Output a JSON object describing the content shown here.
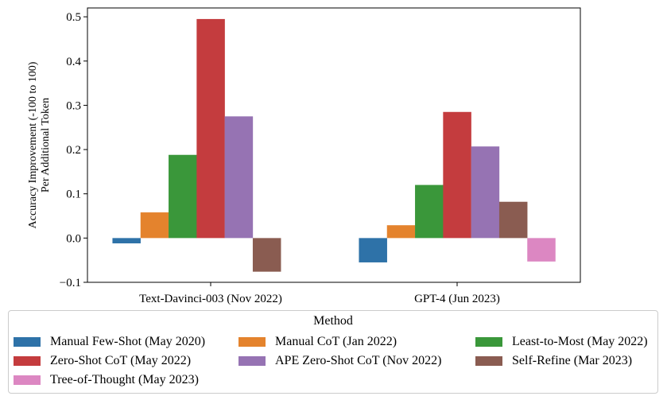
{
  "chart_data": {
    "type": "bar",
    "categories": [
      "Text-Davinci-003 (Nov 2022)",
      "GPT-4 (Jun 2023)"
    ],
    "ylabel_lines": [
      "Accuracy Improvement (-100 to 100)",
      "Per Additional Token"
    ],
    "xlabel": "",
    "ylim": [
      -0.1,
      0.52
    ],
    "yticks": [
      -0.1,
      0.0,
      0.1,
      0.2,
      0.3,
      0.4,
      0.5
    ],
    "ytick_labels": [
      "−0.1",
      "0.0",
      "0.1",
      "0.2",
      "0.3",
      "0.4",
      "0.5"
    ],
    "grid": false,
    "legend": {
      "title": "Method",
      "placement": "below plot",
      "columns": 3
    },
    "series": [
      {
        "name": "Manual Few-Shot (May 2020)",
        "color": "#2e72a8",
        "values": [
          -0.012,
          -0.055
        ]
      },
      {
        "name": "Manual CoT (Jan 2022)",
        "color": "#e4832d",
        "values": [
          0.058,
          0.029
        ]
      },
      {
        "name": "Least-to-Most (May 2022)",
        "color": "#3a973a",
        "values": [
          0.188,
          0.12
        ]
      },
      {
        "name": "Zero-Shot CoT (May 2022)",
        "color": "#c43c3e",
        "values": [
          0.495,
          0.285
        ]
      },
      {
        "name": "APE Zero-Shot CoT (Nov 2022)",
        "color": "#9673b3",
        "values": [
          0.275,
          0.207
        ]
      },
      {
        "name": "Self-Refine (Mar 2023)",
        "color": "#8a5c51",
        "values": [
          -0.076,
          0.082
        ]
      },
      {
        "name": "Tree-of-Thought (May 2023)",
        "color": "#dc87c2",
        "values": [
          null,
          -0.053
        ]
      }
    ],
    "legend_order": [
      0,
      1,
      2,
      3,
      4,
      5,
      6
    ]
  }
}
